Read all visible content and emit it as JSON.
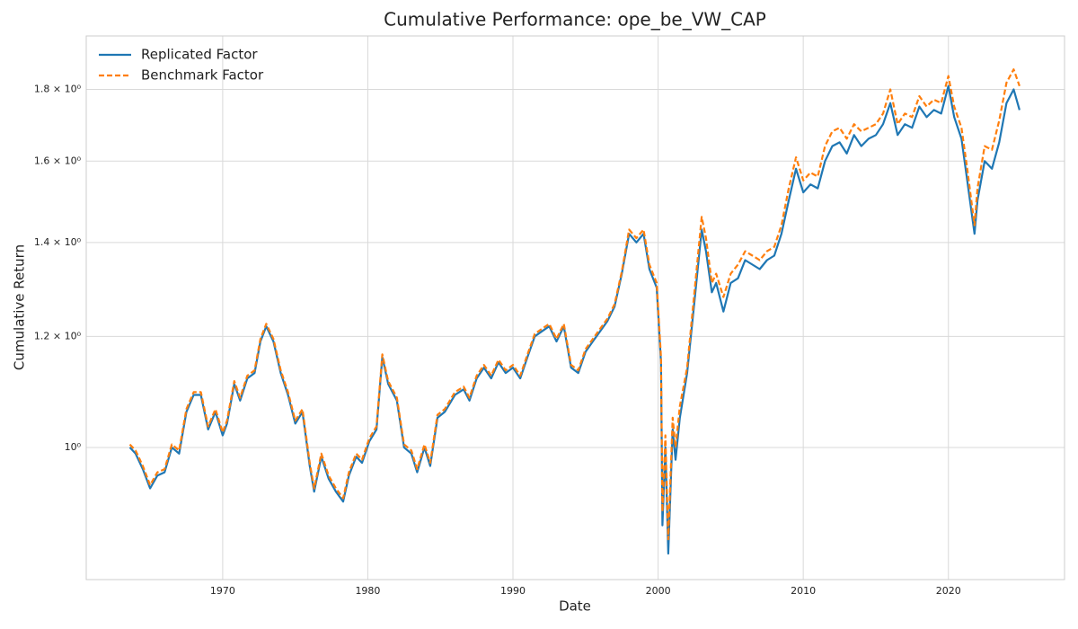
{
  "chart_data": {
    "type": "line",
    "title": "Cumulative Performance: ope_be_VW_CAP",
    "x_label": "Date",
    "y_label": "Cumulative Return",
    "log_y": true,
    "grid": true,
    "legend": "upper left",
    "xlim": [
      1960.6,
      2028
    ],
    "xticks": [
      1970,
      1980,
      1990,
      2000,
      2010,
      2020
    ],
    "ylim": [
      0.805,
      1.965
    ],
    "yticks": [
      {
        "value": 1,
        "label": "10⁰"
      },
      {
        "value": 1.2,
        "label": "1.2 × 10⁰"
      },
      {
        "value": 1.4,
        "label": "1.4 × 10⁰"
      },
      {
        "value": 1.6,
        "label": "1.6 × 10⁰"
      },
      {
        "value": 1.8,
        "label": "1.8 × 10⁰"
      }
    ],
    "x": [
      1963.6,
      1964,
      1964.5,
      1965,
      1965.5,
      1966,
      1966.5,
      1967,
      1967.5,
      1968,
      1968.5,
      1969,
      1969.5,
      1970,
      1970.3,
      1970.8,
      1971.2,
      1971.7,
      1972.2,
      1972.6,
      1973,
      1973.5,
      1974,
      1974.5,
      1975,
      1975.5,
      1976,
      1976.3,
      1976.8,
      1977.3,
      1977.8,
      1978.3,
      1978.7,
      1979.2,
      1979.6,
      1980.1,
      1980.6,
      1981,
      1981.4,
      1982,
      1982.5,
      1983,
      1983.4,
      1983.9,
      1984.3,
      1984.8,
      1985.3,
      1986,
      1986.6,
      1987,
      1987.5,
      1988,
      1988.5,
      1989,
      1989.5,
      1990,
      1990.5,
      1991,
      1991.5,
      1992,
      1992.5,
      1993,
      1993.5,
      1994,
      1994.5,
      1995,
      1995.5,
      1996,
      1996.5,
      1997,
      1997.5,
      1998,
      1998.5,
      1999,
      1999.4,
      1999.9,
      2000.2,
      2000.3,
      2000.5,
      2000.7,
      2001,
      2001.2,
      2001.5,
      2002,
      2002.5,
      2003,
      2003.3,
      2003.7,
      2004,
      2004.5,
      2005,
      2005.5,
      2006,
      2006.5,
      2007,
      2007.5,
      2008,
      2008.5,
      2009,
      2009.5,
      2010,
      2010.5,
      2011,
      2011.5,
      2012,
      2012.5,
      2013,
      2013.5,
      2014,
      2014.5,
      2015,
      2015.5,
      2016,
      2016.5,
      2017,
      2017.5,
      2018,
      2018.5,
      2019,
      2019.5,
      2020,
      2020.4,
      2020.9,
      2021.3,
      2021.8,
      2022,
      2022.5,
      2023,
      2023.5,
      2024,
      2024.5,
      2024.9
    ],
    "series": [
      {
        "name": "Replicated Factor",
        "color": "#1f77b4",
        "dash": false,
        "values": [
          1.0,
          0.99,
          0.965,
          0.935,
          0.955,
          0.96,
          1.0,
          0.99,
          1.06,
          1.09,
          1.09,
          1.03,
          1.06,
          1.02,
          1.04,
          1.11,
          1.08,
          1.12,
          1.13,
          1.19,
          1.22,
          1.19,
          1.13,
          1.09,
          1.04,
          1.06,
          0.97,
          0.93,
          0.985,
          0.95,
          0.93,
          0.915,
          0.955,
          0.985,
          0.975,
          1.01,
          1.03,
          1.16,
          1.11,
          1.08,
          1.0,
          0.99,
          0.96,
          1.0,
          0.97,
          1.05,
          1.06,
          1.09,
          1.1,
          1.08,
          1.12,
          1.14,
          1.12,
          1.15,
          1.13,
          1.14,
          1.12,
          1.16,
          1.2,
          1.21,
          1.22,
          1.19,
          1.22,
          1.14,
          1.13,
          1.17,
          1.19,
          1.21,
          1.23,
          1.26,
          1.33,
          1.42,
          1.4,
          1.42,
          1.34,
          1.3,
          1.15,
          0.88,
          1.0,
          0.84,
          1.03,
          0.98,
          1.05,
          1.13,
          1.27,
          1.43,
          1.38,
          1.29,
          1.31,
          1.25,
          1.31,
          1.32,
          1.36,
          1.35,
          1.34,
          1.36,
          1.37,
          1.42,
          1.5,
          1.58,
          1.52,
          1.54,
          1.53,
          1.6,
          1.64,
          1.65,
          1.62,
          1.67,
          1.64,
          1.66,
          1.67,
          1.7,
          1.76,
          1.67,
          1.7,
          1.69,
          1.75,
          1.72,
          1.74,
          1.73,
          1.81,
          1.72,
          1.66,
          1.55,
          1.42,
          1.5,
          1.6,
          1.58,
          1.65,
          1.76,
          1.8,
          1.74
        ]
      },
      {
        "name": "Benchmark Factor",
        "color": "#ff7f0e",
        "dash": true,
        "values": [
          1.005,
          0.995,
          0.97,
          0.94,
          0.96,
          0.965,
          1.005,
          0.995,
          1.065,
          1.095,
          1.095,
          1.035,
          1.065,
          1.025,
          1.045,
          1.115,
          1.085,
          1.125,
          1.135,
          1.195,
          1.225,
          1.195,
          1.135,
          1.095,
          1.045,
          1.065,
          0.975,
          0.935,
          0.99,
          0.955,
          0.935,
          0.92,
          0.96,
          0.99,
          0.98,
          1.015,
          1.035,
          1.165,
          1.115,
          1.085,
          1.005,
          0.995,
          0.965,
          1.005,
          0.975,
          1.055,
          1.065,
          1.095,
          1.105,
          1.085,
          1.125,
          1.145,
          1.125,
          1.155,
          1.135,
          1.145,
          1.125,
          1.165,
          1.205,
          1.215,
          1.225,
          1.195,
          1.225,
          1.145,
          1.135,
          1.175,
          1.195,
          1.215,
          1.235,
          1.265,
          1.335,
          1.43,
          1.41,
          1.43,
          1.35,
          1.31,
          1.16,
          0.9,
          1.02,
          0.86,
          1.05,
          1.0,
          1.07,
          1.14,
          1.29,
          1.46,
          1.41,
          1.31,
          1.33,
          1.28,
          1.33,
          1.35,
          1.38,
          1.37,
          1.36,
          1.38,
          1.39,
          1.44,
          1.53,
          1.61,
          1.55,
          1.57,
          1.56,
          1.64,
          1.68,
          1.69,
          1.66,
          1.7,
          1.68,
          1.69,
          1.7,
          1.73,
          1.8,
          1.7,
          1.73,
          1.72,
          1.78,
          1.75,
          1.77,
          1.76,
          1.84,
          1.75,
          1.69,
          1.58,
          1.44,
          1.53,
          1.64,
          1.63,
          1.71,
          1.82,
          1.86,
          1.81
        ]
      }
    ]
  }
}
